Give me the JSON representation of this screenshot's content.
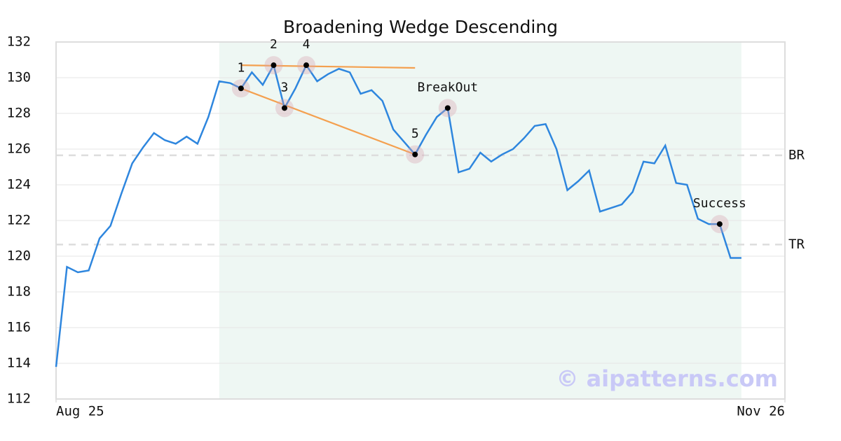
{
  "chart_data": {
    "type": "line",
    "title": "Broadening Wedge Descending",
    "x": [
      0,
      1,
      2,
      3,
      4,
      5,
      6,
      7,
      8,
      9,
      10,
      11,
      12,
      13,
      14,
      15,
      16,
      17,
      18,
      19,
      20,
      21,
      22,
      23,
      24,
      25,
      26,
      27,
      28,
      29,
      30,
      31,
      32,
      33,
      34,
      35,
      36,
      37,
      38,
      39,
      40,
      41,
      42,
      43,
      44,
      45,
      46,
      47,
      48,
      49,
      50,
      51,
      52,
      53,
      54,
      55,
      56,
      57,
      58,
      59,
      60,
      61,
      62,
      63
    ],
    "series": [
      {
        "color": "#2e86de",
        "values": [
          113.8,
          119.4,
          119.1,
          119.2,
          121.0,
          121.7,
          123.5,
          125.2,
          126.1,
          126.9,
          126.5,
          126.3,
          126.7,
          126.3,
          127.8,
          129.8,
          129.7,
          129.4,
          130.3,
          129.6,
          130.7,
          128.3,
          129.4,
          130.7,
          129.8,
          130.2,
          130.5,
          130.3,
          129.1,
          129.3,
          128.7,
          127.1,
          126.4,
          125.7,
          126.8,
          127.8,
          128.3,
          124.7,
          124.9,
          125.8,
          125.3,
          125.7,
          126.0,
          126.6,
          127.3,
          127.4,
          126.0,
          123.7,
          124.2,
          124.8,
          122.5,
          122.7,
          122.9,
          123.6,
          125.3,
          125.2,
          126.2,
          124.1,
          124.0,
          122.1,
          121.8,
          121.8,
          119.9,
          119.9
        ]
      }
    ],
    "xlim": [
      0,
      67
    ],
    "xticks": [
      {
        "value": 0,
        "label": "Aug 25"
      },
      {
        "value": 67,
        "label": "Nov 26"
      }
    ],
    "ylim": [
      112,
      132
    ],
    "yticks": [
      112,
      114,
      116,
      118,
      120,
      122,
      124,
      126,
      128,
      130,
      132
    ],
    "grid": true,
    "highlight": [
      15,
      63
    ],
    "highlight_color": "#eef7f3",
    "annotations": [
      {
        "x": 17,
        "label": "1"
      },
      {
        "x": 20,
        "label": "2"
      },
      {
        "x": 21,
        "label": "3"
      },
      {
        "x": 23,
        "label": "4"
      },
      {
        "x": 33,
        "label": "5"
      },
      {
        "x": 36,
        "label": "BreakOut"
      },
      {
        "x": 61,
        "label": "Success"
      }
    ],
    "trend_lines": [
      {
        "x": [
          17,
          33
        ],
        "y": [
          130.7,
          130.55
        ],
        "color": "#f4a04f"
      },
      {
        "x": [
          17,
          33
        ],
        "y": [
          129.4,
          125.7
        ],
        "color": "#f4a04f"
      }
    ],
    "levels": [
      {
        "value": 125.65,
        "label": "BR"
      },
      {
        "value": 120.65,
        "label": "TR"
      }
    ],
    "watermark": "© aipatterns.com"
  }
}
